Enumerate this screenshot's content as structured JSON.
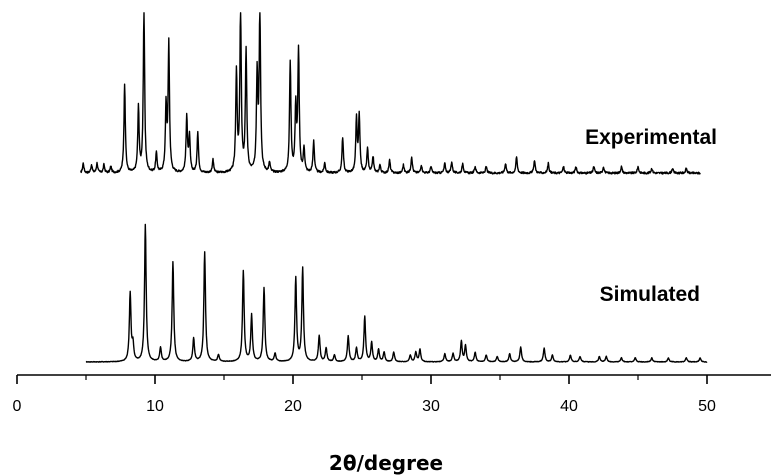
{
  "chart_data": {
    "type": "line",
    "xlabel": "2θ/degree",
    "ylabel": "",
    "xlim": [
      0,
      55
    ],
    "x_ticks": [
      "0",
      "10",
      "20",
      "30",
      "40",
      "50"
    ],
    "grid": false,
    "series": [
      {
        "name": "Experimental",
        "x_range": [
          4.6,
          49.5
        ],
        "baseline": 0.03,
        "peaks": [
          [
            4.8,
            0.06
          ],
          [
            5.4,
            0.05
          ],
          [
            5.8,
            0.06
          ],
          [
            6.3,
            0.05
          ],
          [
            6.8,
            0.04
          ],
          [
            7.8,
            0.55
          ],
          [
            8.8,
            0.4
          ],
          [
            9.2,
            1.0
          ],
          [
            10.1,
            0.12
          ],
          [
            10.8,
            0.4
          ],
          [
            11.0,
            0.8
          ],
          [
            12.3,
            0.35
          ],
          [
            12.5,
            0.22
          ],
          [
            13.1,
            0.25
          ],
          [
            14.2,
            0.08
          ],
          [
            15.9,
            0.62
          ],
          [
            16.2,
            1.0
          ],
          [
            16.6,
            0.75
          ],
          [
            17.4,
            0.6
          ],
          [
            17.6,
            1.0
          ],
          [
            18.3,
            0.06
          ],
          [
            19.8,
            0.68
          ],
          [
            20.2,
            0.4
          ],
          [
            20.4,
            0.75
          ],
          [
            20.8,
            0.15
          ],
          [
            21.5,
            0.2
          ],
          [
            22.3,
            0.06
          ],
          [
            23.6,
            0.22
          ],
          [
            24.6,
            0.33
          ],
          [
            24.8,
            0.35
          ],
          [
            25.4,
            0.15
          ],
          [
            25.8,
            0.1
          ],
          [
            26.3,
            0.05
          ],
          [
            27.0,
            0.08
          ],
          [
            28.0,
            0.05
          ],
          [
            28.6,
            0.1
          ],
          [
            29.3,
            0.05
          ],
          [
            30.0,
            0.04
          ],
          [
            31.0,
            0.06
          ],
          [
            31.5,
            0.07
          ],
          [
            32.3,
            0.06
          ],
          [
            33.2,
            0.04
          ],
          [
            34.0,
            0.04
          ],
          [
            35.4,
            0.06
          ],
          [
            36.2,
            0.1
          ],
          [
            37.5,
            0.08
          ],
          [
            38.5,
            0.06
          ],
          [
            39.6,
            0.04
          ],
          [
            40.5,
            0.04
          ],
          [
            41.8,
            0.04
          ],
          [
            42.5,
            0.04
          ],
          [
            43.8,
            0.04
          ],
          [
            45.0,
            0.04
          ],
          [
            46.0,
            0.03
          ],
          [
            47.5,
            0.03
          ],
          [
            48.5,
            0.03
          ]
        ]
      },
      {
        "name": "Simulated",
        "x_range": [
          5.0,
          50.0
        ],
        "baseline": 0.0,
        "peaks": [
          [
            8.2,
            0.5
          ],
          [
            8.4,
            0.12
          ],
          [
            9.3,
            1.0
          ],
          [
            10.4,
            0.1
          ],
          [
            11.3,
            0.73
          ],
          [
            12.8,
            0.17
          ],
          [
            13.6,
            0.8
          ],
          [
            14.6,
            0.05
          ],
          [
            16.4,
            0.66
          ],
          [
            17.0,
            0.34
          ],
          [
            17.9,
            0.54
          ],
          [
            18.7,
            0.06
          ],
          [
            20.2,
            0.61
          ],
          [
            20.7,
            0.68
          ],
          [
            21.9,
            0.19
          ],
          [
            22.4,
            0.1
          ],
          [
            23.0,
            0.05
          ],
          [
            24.0,
            0.19
          ],
          [
            24.6,
            0.1
          ],
          [
            25.2,
            0.33
          ],
          [
            25.7,
            0.14
          ],
          [
            26.2,
            0.09
          ],
          [
            26.6,
            0.07
          ],
          [
            27.3,
            0.07
          ],
          [
            28.5,
            0.05
          ],
          [
            28.9,
            0.07
          ],
          [
            29.2,
            0.09
          ],
          [
            31.0,
            0.06
          ],
          [
            31.6,
            0.06
          ],
          [
            32.2,
            0.15
          ],
          [
            32.5,
            0.12
          ],
          [
            33.2,
            0.07
          ],
          [
            34.0,
            0.05
          ],
          [
            34.8,
            0.04
          ],
          [
            35.7,
            0.06
          ],
          [
            36.5,
            0.11
          ],
          [
            38.2,
            0.1
          ],
          [
            38.8,
            0.05
          ],
          [
            40.1,
            0.05
          ],
          [
            40.8,
            0.04
          ],
          [
            42.2,
            0.04
          ],
          [
            42.7,
            0.04
          ],
          [
            43.8,
            0.03
          ],
          [
            44.8,
            0.03
          ],
          [
            46.0,
            0.03
          ],
          [
            47.2,
            0.03
          ],
          [
            48.5,
            0.03
          ],
          [
            49.5,
            0.03
          ]
        ]
      }
    ]
  }
}
